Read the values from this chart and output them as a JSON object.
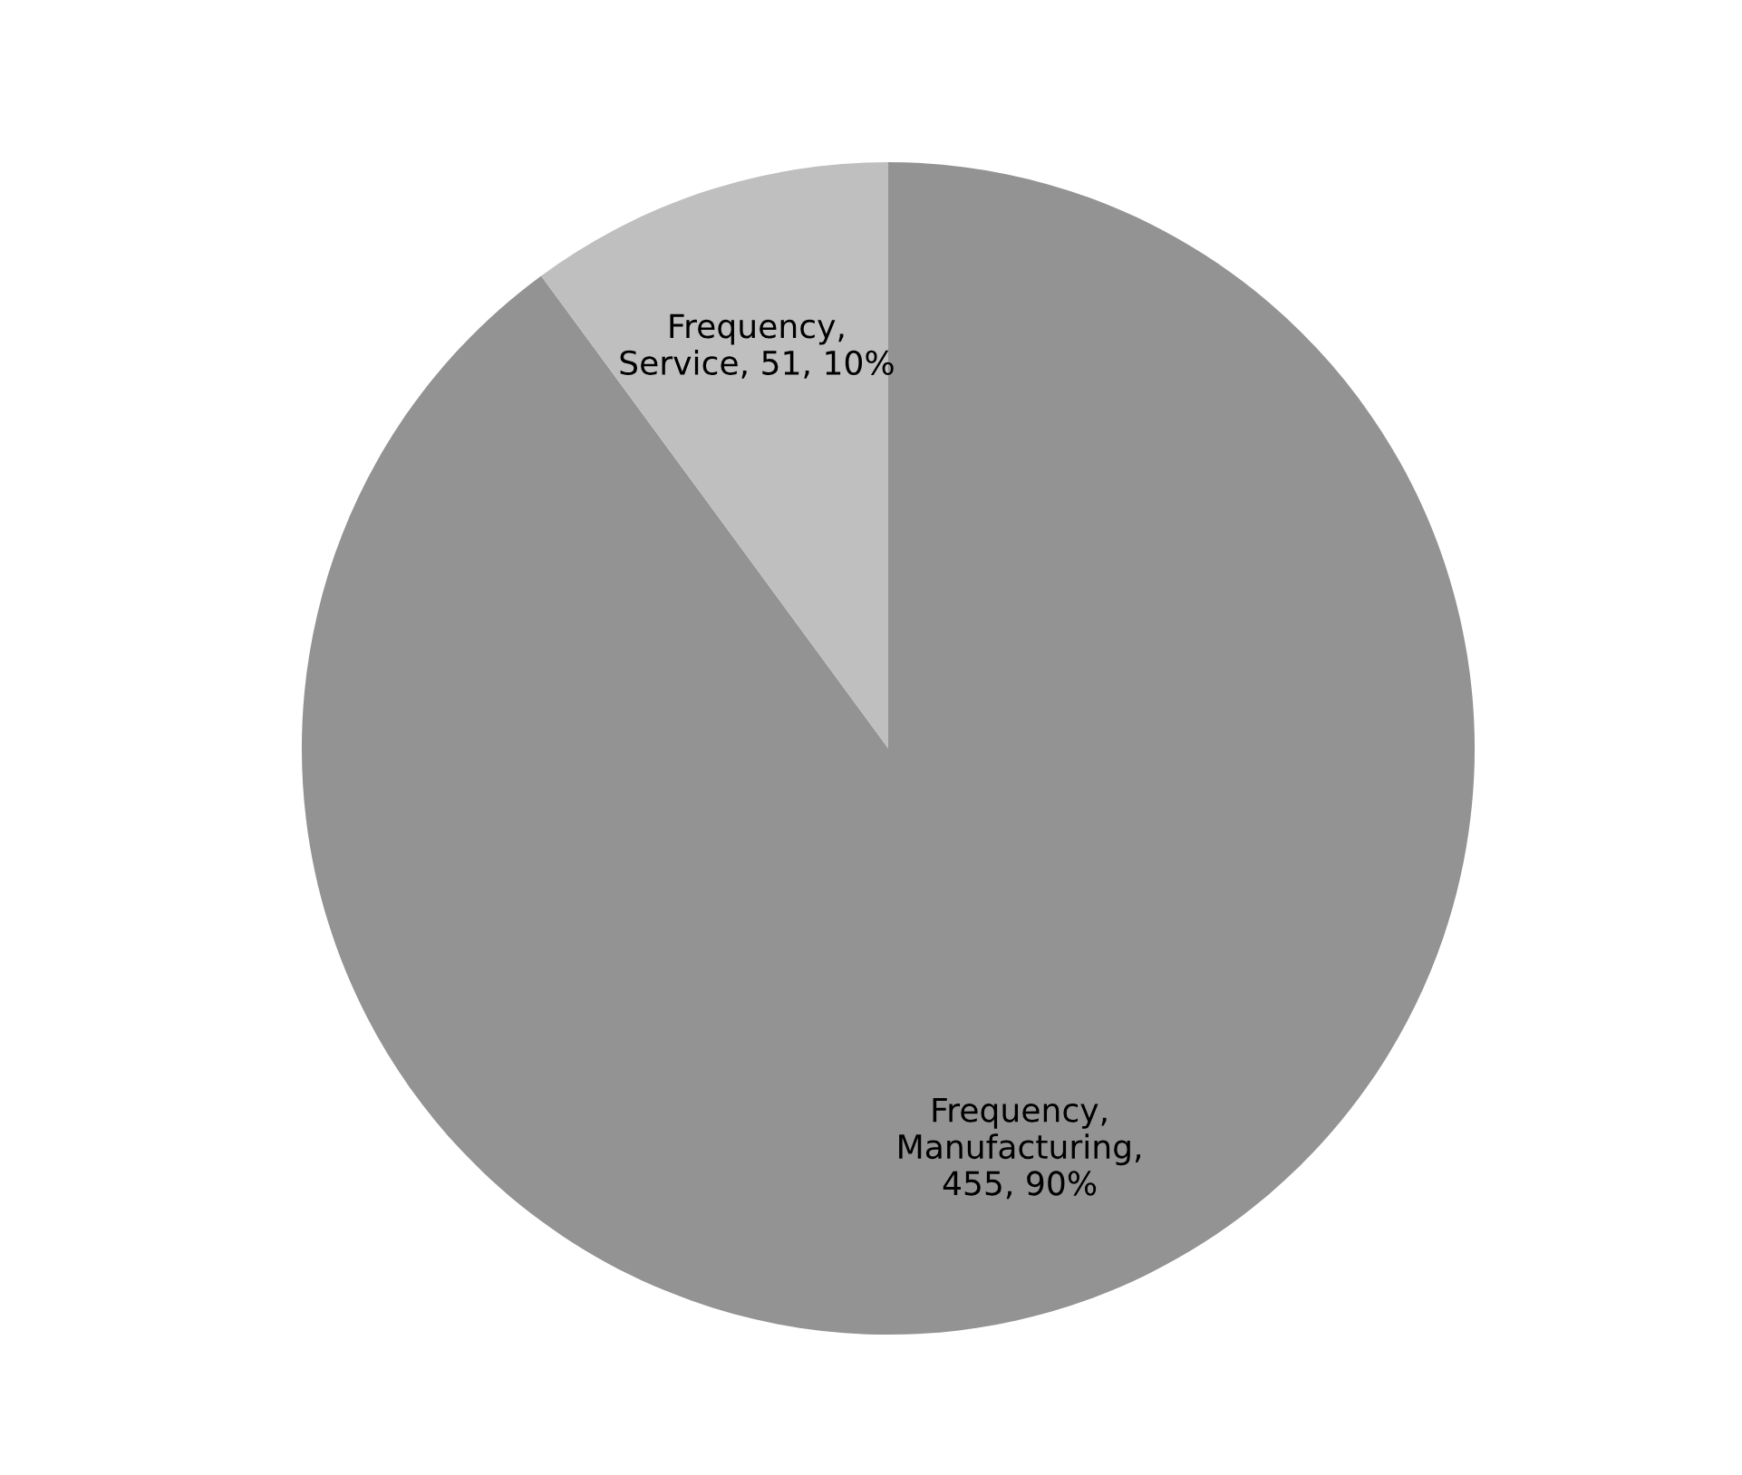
{
  "chart_data": {
    "type": "pie",
    "categories": [
      null,
      null
    ],
    "values": [
      455,
      51
    ],
    "colors": [
      "#939393",
      "#bfbfbf"
    ],
    "value_labels": [
      "Frequency,\nManufacturing,\n455, 90%",
      "Frequency,\nService, 51, 10%"
    ]
  }
}
